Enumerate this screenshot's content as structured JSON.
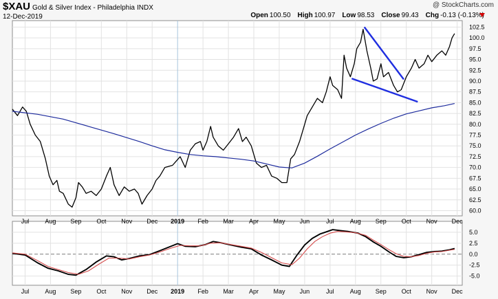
{
  "header": {
    "symbol": "$XAU",
    "description": "Gold & Silver Index - Philadelphia",
    "exchange": "INDX",
    "date": "12-Dec-2019",
    "watermark": "@ StockCharts.com",
    "open_label": "Open",
    "open": "100.50",
    "high_label": "High",
    "high": "100.97",
    "low_label": "Low",
    "low": "98.53",
    "close_label": "Close",
    "close": "99.43",
    "chg_label": "Chg",
    "chg": "-0.13 (-0.13%)"
  },
  "chart_data": [
    {
      "type": "line",
      "panel": "price",
      "x_ticks": [
        "Jul",
        "Aug",
        "Sep",
        "Oct",
        "Nov",
        "Dec",
        "2019",
        "Feb",
        "Mar",
        "Apr",
        "May",
        "Jun",
        "Jul",
        "Aug",
        "Sep",
        "Oct",
        "Nov",
        "Dec"
      ],
      "y_ticks": [
        60.0,
        62.5,
        65.0,
        67.5,
        70.0,
        72.5,
        75.0,
        77.5,
        80.0,
        82.5,
        85.0,
        87.5,
        90.0,
        92.5,
        95.0,
        97.5,
        100.0,
        102.5
      ],
      "ylim": [
        58.8,
        104.0
      ],
      "x_range": [
        0,
        17.7
      ],
      "series": [
        {
          "kind": "price",
          "points": [
            [
              0.0,
              83.5
            ],
            [
              0.2,
              82.0
            ],
            [
              0.4,
              84.0
            ],
            [
              0.55,
              83.0
            ],
            [
              0.7,
              80.0
            ],
            [
              0.9,
              77.5
            ],
            [
              1.1,
              76.0
            ],
            [
              1.3,
              72.0
            ],
            [
              1.45,
              68.0
            ],
            [
              1.6,
              66.0
            ],
            [
              1.75,
              67.0
            ],
            [
              1.85,
              64.5
            ],
            [
              2.0,
              64.0
            ],
            [
              2.2,
              61.5
            ],
            [
              2.35,
              60.8
            ],
            [
              2.5,
              63.0
            ],
            [
              2.6,
              66.5
            ],
            [
              2.75,
              65.5
            ],
            [
              2.9,
              64.0
            ],
            [
              3.1,
              64.5
            ],
            [
              3.3,
              63.5
            ],
            [
              3.5,
              65.0
            ],
            [
              3.7,
              68.0
            ],
            [
              3.85,
              70.0
            ],
            [
              4.0,
              66.0
            ],
            [
              4.2,
              63.5
            ],
            [
              4.4,
              65.5
            ],
            [
              4.6,
              64.5
            ],
            [
              4.8,
              65.0
            ],
            [
              4.95,
              64.0
            ],
            [
              5.1,
              61.5
            ],
            [
              5.3,
              63.5
            ],
            [
              5.5,
              65.0
            ],
            [
              5.65,
              67.0
            ],
            [
              5.8,
              68.0
            ],
            [
              6.0,
              70.0
            ],
            [
              6.3,
              70.5
            ],
            [
              6.6,
              72.5
            ],
            [
              6.8,
              70.0
            ],
            [
              7.0,
              74.0
            ],
            [
              7.2,
              75.5
            ],
            [
              7.4,
              76.0
            ],
            [
              7.5,
              74.0
            ],
            [
              7.65,
              76.0
            ],
            [
              7.8,
              79.5
            ],
            [
              7.9,
              77.0
            ],
            [
              8.1,
              75.0
            ],
            [
              8.3,
              74.0
            ],
            [
              8.5,
              75.5
            ],
            [
              8.7,
              77.0
            ],
            [
              8.9,
              79.0
            ],
            [
              9.05,
              76.0
            ],
            [
              9.2,
              77.0
            ],
            [
              9.4,
              75.0
            ],
            [
              9.5,
              73.0
            ],
            [
              9.6,
              71.0
            ],
            [
              9.8,
              70.0
            ],
            [
              10.0,
              70.5
            ],
            [
              10.2,
              68.0
            ],
            [
              10.4,
              67.5
            ],
            [
              10.6,
              66.5
            ],
            [
              10.8,
              66.5
            ],
            [
              10.95,
              72.0
            ],
            [
              11.1,
              73.0
            ],
            [
              11.3,
              76.0
            ],
            [
              11.45,
              79.0
            ],
            [
              11.6,
              82.0
            ],
            [
              11.8,
              84.0
            ],
            [
              12.0,
              86.0
            ],
            [
              12.2,
              85.0
            ],
            [
              12.35,
              87.5
            ],
            [
              12.5,
              91.0
            ],
            [
              12.6,
              89.0
            ],
            [
              12.8,
              88.0
            ],
            [
              12.95,
              86.0
            ],
            [
              13.05,
              96.0
            ],
            [
              13.15,
              93.0
            ],
            [
              13.3,
              91.0
            ],
            [
              13.45,
              94.0
            ],
            [
              13.55,
              97.5
            ],
            [
              13.7,
              99.0
            ],
            [
              13.8,
              102.0
            ],
            [
              13.95,
              97.0
            ],
            [
              14.1,
              93.0
            ],
            [
              14.2,
              90.0
            ],
            [
              14.35,
              90.5
            ],
            [
              14.5,
              94.0
            ],
            [
              14.6,
              91.0
            ],
            [
              14.8,
              92.0
            ],
            [
              15.0,
              89.0
            ],
            [
              15.15,
              87.5
            ],
            [
              15.3,
              88.0
            ],
            [
              15.5,
              91.0
            ],
            [
              15.7,
              93.0
            ],
            [
              15.85,
              95.0
            ],
            [
              16.0,
              93.0
            ],
            [
              16.2,
              94.0
            ],
            [
              16.35,
              96.0
            ],
            [
              16.5,
              94.5
            ],
            [
              16.7,
              96.0
            ],
            [
              16.9,
              97.0
            ],
            [
              17.05,
              96.0
            ],
            [
              17.2,
              98.0
            ],
            [
              17.3,
              100.0
            ],
            [
              17.4,
              101.0
            ]
          ]
        },
        {
          "kind": "moving-average",
          "points": [
            [
              0.0,
              83.0
            ],
            [
              1.0,
              82.3
            ],
            [
              2.0,
              81.2
            ],
            [
              3.0,
              79.5
            ],
            [
              4.0,
              77.8
            ],
            [
              5.0,
              76.0
            ],
            [
              5.5,
              75.0
            ],
            [
              6.0,
              74.1
            ],
            [
              6.5,
              73.5
            ],
            [
              7.0,
              73.0
            ],
            [
              7.5,
              72.7
            ],
            [
              8.0,
              72.5
            ],
            [
              8.5,
              72.2
            ],
            [
              9.0,
              71.9
            ],
            [
              9.5,
              71.5
            ],
            [
              10.0,
              70.8
            ],
            [
              10.5,
              70.1
            ],
            [
              11.0,
              69.9
            ],
            [
              11.5,
              71.0
            ],
            [
              12.0,
              72.6
            ],
            [
              12.5,
              74.3
            ],
            [
              13.0,
              75.9
            ],
            [
              13.5,
              77.5
            ],
            [
              14.0,
              78.9
            ],
            [
              14.5,
              80.2
            ],
            [
              15.0,
              81.4
            ],
            [
              15.5,
              82.4
            ],
            [
              16.0,
              83.1
            ],
            [
              16.5,
              83.8
            ],
            [
              17.0,
              84.3
            ],
            [
              17.4,
              84.8
            ]
          ]
        },
        {
          "kind": "trendline-upper",
          "points": [
            [
              13.85,
              102.5
            ],
            [
              15.4,
              90.4
            ]
          ]
        },
        {
          "kind": "trendline-lower",
          "points": [
            [
              13.35,
              90.6
            ],
            [
              15.95,
              85.2
            ]
          ]
        }
      ]
    },
    {
      "type": "line",
      "panel": "oscillator",
      "y_ticks": [
        -5.0,
        -2.5,
        0.0,
        2.5,
        5.0
      ],
      "ylim": [
        -7.1,
        7.5
      ],
      "zero_line": 0,
      "series": [
        {
          "kind": "oscillator",
          "points": [
            [
              0.0,
              0.2
            ],
            [
              0.5,
              -0.2
            ],
            [
              1.0,
              -2.0
            ],
            [
              1.4,
              -3.2
            ],
            [
              1.8,
              -3.8
            ],
            [
              2.2,
              -4.6
            ],
            [
              2.5,
              -4.8
            ],
            [
              2.9,
              -3.5
            ],
            [
              3.3,
              -1.8
            ],
            [
              3.7,
              -0.4
            ],
            [
              4.0,
              -0.6
            ],
            [
              4.3,
              -1.3
            ],
            [
              4.6,
              -1.0
            ],
            [
              5.0,
              -0.4
            ],
            [
              5.4,
              -0.1
            ],
            [
              5.8,
              0.8
            ],
            [
              6.2,
              1.7
            ],
            [
              6.5,
              2.4
            ],
            [
              6.8,
              1.8
            ],
            [
              7.2,
              1.7
            ],
            [
              7.6,
              2.2
            ],
            [
              7.9,
              2.9
            ],
            [
              8.2,
              2.6
            ],
            [
              8.6,
              2.1
            ],
            [
              9.0,
              1.6
            ],
            [
              9.4,
              1.2
            ],
            [
              9.8,
              -0.2
            ],
            [
              10.2,
              -1.3
            ],
            [
              10.6,
              -2.5
            ],
            [
              10.9,
              -2.8
            ],
            [
              11.2,
              -0.2
            ],
            [
              11.5,
              2.1
            ],
            [
              11.8,
              3.6
            ],
            [
              12.1,
              4.6
            ],
            [
              12.4,
              5.2
            ],
            [
              12.6,
              5.6
            ],
            [
              12.9,
              5.4
            ],
            [
              13.2,
              5.2
            ],
            [
              13.6,
              4.8
            ],
            [
              13.9,
              4.0
            ],
            [
              14.2,
              2.8
            ],
            [
              14.5,
              1.8
            ],
            [
              14.8,
              0.6
            ],
            [
              15.1,
              -0.5
            ],
            [
              15.4,
              -0.8
            ],
            [
              15.7,
              -0.6
            ],
            [
              16.0,
              -0.1
            ],
            [
              16.3,
              0.4
            ],
            [
              16.6,
              0.6
            ],
            [
              16.9,
              0.7
            ],
            [
              17.2,
              1.0
            ],
            [
              17.4,
              1.3
            ]
          ]
        },
        {
          "kind": "signal",
          "points": [
            [
              0.0,
              0.3
            ],
            [
              0.5,
              0.0
            ],
            [
              1.0,
              -1.5
            ],
            [
              1.4,
              -2.8
            ],
            [
              1.8,
              -3.5
            ],
            [
              2.2,
              -4.2
            ],
            [
              2.6,
              -4.6
            ],
            [
              3.0,
              -3.8
            ],
            [
              3.4,
              -2.3
            ],
            [
              3.8,
              -0.9
            ],
            [
              4.2,
              -0.9
            ],
            [
              4.6,
              -1.1
            ],
            [
              5.0,
              -0.6
            ],
            [
              5.4,
              -0.2
            ],
            [
              5.8,
              0.5
            ],
            [
              6.2,
              1.3
            ],
            [
              6.6,
              2.0
            ],
            [
              7.0,
              1.9
            ],
            [
              7.4,
              1.9
            ],
            [
              7.8,
              2.5
            ],
            [
              8.2,
              2.6
            ],
            [
              8.6,
              2.2
            ],
            [
              9.0,
              1.8
            ],
            [
              9.4,
              1.4
            ],
            [
              9.8,
              0.4
            ],
            [
              10.2,
              -0.8
            ],
            [
              10.6,
              -2.0
            ],
            [
              11.0,
              -2.4
            ],
            [
              11.3,
              -0.9
            ],
            [
              11.6,
              1.2
            ],
            [
              11.9,
              2.9
            ],
            [
              12.2,
              4.0
            ],
            [
              12.5,
              4.8
            ],
            [
              12.8,
              5.2
            ],
            [
              13.1,
              5.1
            ],
            [
              13.5,
              4.9
            ],
            [
              13.9,
              4.3
            ],
            [
              14.2,
              3.2
            ],
            [
              14.5,
              2.2
            ],
            [
              14.8,
              1.1
            ],
            [
              15.1,
              0.1
            ],
            [
              15.4,
              -0.5
            ],
            [
              15.7,
              -0.6
            ],
            [
              16.0,
              -0.3
            ],
            [
              16.3,
              0.2
            ],
            [
              16.6,
              0.5
            ],
            [
              16.9,
              0.6
            ],
            [
              17.2,
              0.9
            ],
            [
              17.4,
              1.1
            ]
          ]
        }
      ]
    }
  ],
  "colors": {
    "price": "#000000",
    "moving_average": "#1c2a9c",
    "trendline": "#1f2ee0",
    "signal": "#d44a4a",
    "panel_bg": "#ffffff",
    "grid": "#e2e2e2",
    "zero_line": "#7a7a7a",
    "marker": "#d40000"
  }
}
